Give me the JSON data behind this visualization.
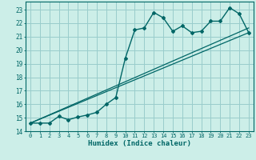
{
  "xlabel": "Humidex (Indice chaleur)",
  "bg_color": "#cceee8",
  "grid_color": "#99cccc",
  "line_color": "#006666",
  "xlim": [
    -0.5,
    23.5
  ],
  "ylim": [
    14.0,
    23.6
  ],
  "x_ticks": [
    0,
    1,
    2,
    3,
    4,
    5,
    6,
    7,
    8,
    9,
    10,
    11,
    12,
    13,
    14,
    15,
    16,
    17,
    18,
    19,
    20,
    21,
    22,
    23
  ],
  "y_ticks": [
    14,
    15,
    16,
    17,
    18,
    19,
    20,
    21,
    22,
    23
  ],
  "curve_x": [
    0,
    1,
    2,
    3,
    4,
    5,
    6,
    7,
    8,
    9,
    10,
    11,
    12,
    13,
    14,
    15,
    16,
    17,
    18,
    19,
    20,
    21,
    22,
    23
  ],
  "curve_y": [
    14.6,
    14.6,
    14.6,
    15.1,
    14.85,
    15.05,
    15.2,
    15.4,
    16.0,
    16.5,
    19.4,
    21.5,
    21.65,
    22.8,
    22.4,
    21.4,
    21.8,
    21.3,
    21.4,
    22.15,
    22.15,
    23.15,
    22.7,
    21.3
  ],
  "line1_x": [
    0,
    23
  ],
  "line1_y": [
    14.6,
    21.3
  ],
  "line2_x": [
    0,
    23
  ],
  "line2_y": [
    14.6,
    21.65
  ],
  "font_size_ticks": 5,
  "font_size_xlabel": 6.5
}
